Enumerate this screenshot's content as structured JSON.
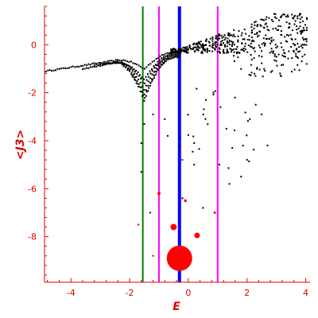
{
  "chart_data": {
    "type": "scatter",
    "xlabel": "E",
    "ylabel": "<J3>",
    "xlim": [
      -4.9,
      4.15
    ],
    "ylim": [
      -9.9,
      1.6
    ],
    "xticks": [
      -4,
      -2,
      0,
      2,
      4
    ],
    "yticks": [
      0,
      -2,
      -4,
      -6,
      -8
    ],
    "grid": false,
    "colors": {
      "axis": "#e00000",
      "points": "#000000",
      "highlight": "#ff0000",
      "line_green": "#008000",
      "line_magenta": "#ff00ff",
      "line_blue": "#0000ff"
    },
    "vertical_lines": [
      {
        "x": -1.55,
        "color": "#008000",
        "width": 2
      },
      {
        "x": -1.0,
        "color": "#ff00ff",
        "width": 2
      },
      {
        "x": -0.3,
        "color": "#0000ff",
        "width": 4
      },
      {
        "x": 1.0,
        "color": "#ff00ff",
        "width": 2
      }
    ],
    "highlight_points": [
      {
        "x": -0.3,
        "y": -8.9,
        "r": 16
      },
      {
        "x": -0.5,
        "y": -7.6,
        "r": 4
      },
      {
        "x": 0.3,
        "y": -7.95,
        "r": 3.5
      },
      {
        "x": -1.0,
        "y": -6.2,
        "r": 2
      },
      {
        "x": -0.1,
        "y": -6.5,
        "r": 1.8
      },
      {
        "x": 0.9,
        "y": -7.0,
        "r": 1.5
      },
      {
        "x": -1.7,
        "y": -7.5,
        "r": 1.2
      },
      {
        "x": -1.2,
        "y": -8.8,
        "r": 1.2
      },
      {
        "x": -0.2,
        "y": -4.8,
        "r": 1.2
      }
    ],
    "band_points": [
      {
        "x0": -4.85,
        "x1": -0.3,
        "y0": -1.1,
        "y1": -0.25,
        "n": 70,
        "drop": 0.55
      },
      {
        "x0": -3.6,
        "x1": -0.3,
        "y0": -1.0,
        "y1": -0.3,
        "n": 50,
        "drop": 0.9
      },
      {
        "x0": -3.2,
        "x1": -0.3,
        "y0": -0.85,
        "y1": -0.35,
        "n": 45,
        "drop": 1.1
      },
      {
        "x0": -2.9,
        "x1": -0.3,
        "y0": -0.8,
        "y1": -0.4,
        "n": 40,
        "drop": 1.3
      },
      {
        "x0": -2.5,
        "x1": -0.3,
        "y0": -0.75,
        "y1": -0.45,
        "n": 36,
        "drop": 1.5
      },
      {
        "x0": -2.2,
        "x1": -0.3,
        "y0": -0.75,
        "y1": -0.5,
        "n": 30,
        "drop": 1.6
      },
      {
        "x0": -1.9,
        "x1": -0.3,
        "y0": -0.7,
        "y1": -0.5,
        "n": 25,
        "drop": 1.7
      }
    ],
    "cloud_points": [
      {
        "x0": -0.6,
        "x1": 4.1,
        "y0": -0.35,
        "y1": 1.3,
        "n": 420
      },
      {
        "x0": 1.5,
        "x1": 4.1,
        "y0": -1.35,
        "y1": -0.35,
        "n": 55
      },
      {
        "x0": -0.4,
        "x1": 1.0,
        "y0": -4.5,
        "y1": -1.0,
        "n": 14
      },
      {
        "x0": 1.0,
        "x1": 2.3,
        "y0": -6.0,
        "y1": -1.5,
        "n": 10
      }
    ],
    "sparse_points": [
      {
        "x": -1.6,
        "y": -5.3
      },
      {
        "x": -1.6,
        "y": -4.1
      },
      {
        "x": -1.5,
        "y": -3.3
      },
      {
        "x": -1.2,
        "y": -2.9
      },
      {
        "x": -0.8,
        "y": -3.1
      },
      {
        "x": -0.7,
        "y": -3.8
      },
      {
        "x": -0.3,
        "y": -3.9
      },
      {
        "x": 0.2,
        "y": -4.1
      },
      {
        "x": 0.2,
        "y": -5.0
      },
      {
        "x": 0.6,
        "y": -2.3
      },
      {
        "x": 1.1,
        "y": -2.6
      },
      {
        "x": 1.3,
        "y": -3.5
      },
      {
        "x": 1.4,
        "y": -5.8
      },
      {
        "x": 1.5,
        "y": -4.3
      },
      {
        "x": 1.8,
        "y": -5.5
      },
      {
        "x": 2.0,
        "y": -4.8
      },
      {
        "x": 2.1,
        "y": -3.1
      },
      {
        "x": 2.3,
        "y": -2.5
      },
      {
        "x": 2.5,
        "y": -2.9
      },
      {
        "x": 2.7,
        "y": -4.2
      },
      {
        "x": -0.2,
        "y": -6.4
      },
      {
        "x": 0.5,
        "y": -6.8
      },
      {
        "x": -1.3,
        "y": -7.0
      }
    ]
  }
}
